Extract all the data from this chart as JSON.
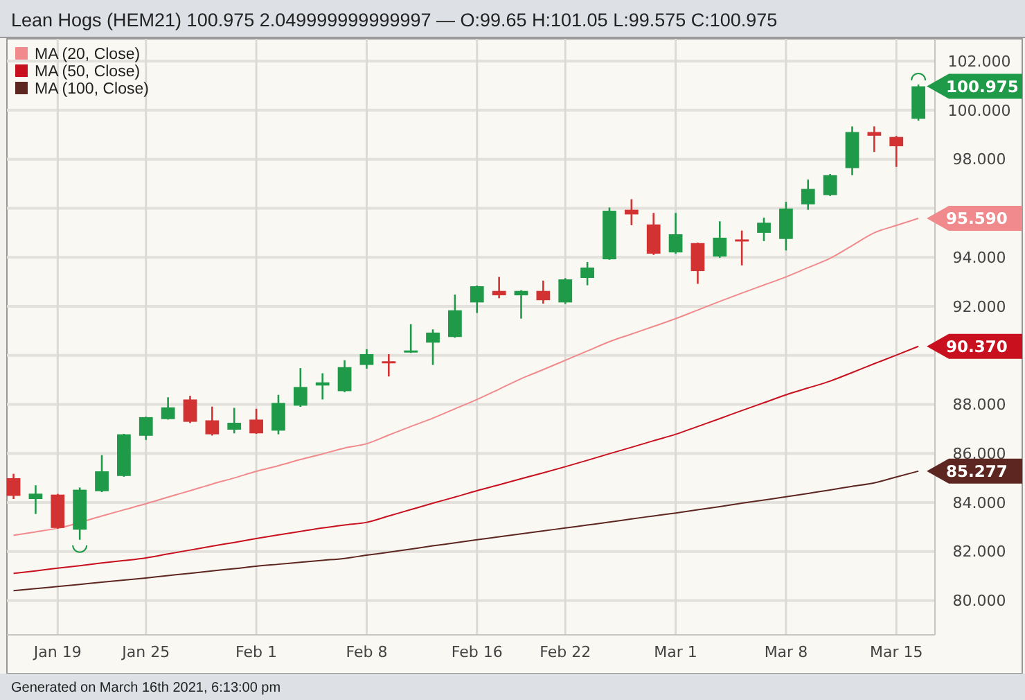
{
  "chart_data": {
    "type": "candlestick",
    "title": "Lean Hogs (HEM21) 100.975 2.049999999999997 — O:99.65 H:101.05 L:99.575 C:100.975",
    "annotations": [
      "Generated on March 16th 2021, 6:13:00 pm"
    ],
    "categories": [
      null,
      null,
      "Jan 19",
      null,
      null,
      null,
      "Jan 25",
      null,
      null,
      null,
      null,
      "Feb 1",
      null,
      null,
      null,
      null,
      "Feb 8",
      null,
      null,
      null,
      null,
      "Feb 16",
      null,
      null,
      null,
      "Feb 22",
      null,
      null,
      null,
      null,
      "Mar 1",
      null,
      null,
      null,
      null,
      "Mar 8",
      null,
      null,
      null,
      null,
      "Mar 15",
      null
    ],
    "ylim": [
      78.6,
      102.8
    ],
    "yticks": [
      {
        "value": 80,
        "label": "80.000"
      },
      {
        "value": 82,
        "label": "82.000"
      },
      {
        "value": 84,
        "label": "84.000"
      },
      {
        "value": 86,
        "label": "86.000"
      },
      {
        "value": 88,
        "label": "88.000"
      },
      {
        "value": 90,
        "label": null
      },
      {
        "value": 92,
        "label": "92.000"
      },
      {
        "value": 94,
        "label": "94.000"
      },
      {
        "value": 96,
        "label": null
      },
      {
        "value": 98,
        "label": "98.000"
      },
      {
        "value": 100,
        "label": "100.000"
      },
      {
        "value": 102,
        "label": "102.000"
      }
    ],
    "grid": true,
    "legend": "top left",
    "series": [
      {
        "type": "line",
        "name": "MA (20, Close)",
        "color": "#f08a8c",
        "values": [
          82.66,
          82.8,
          82.95,
          null,
          83.45,
          83.7,
          83.95,
          84.22,
          84.48,
          84.75,
          85.0,
          85.27,
          85.5,
          85.75,
          85.98,
          86.22,
          86.4,
          86.75,
          87.1,
          87.44,
          87.82,
          88.2,
          88.62,
          89.05,
          89.42,
          89.8,
          90.18,
          90.56,
          90.87,
          91.18,
          91.5,
          91.85,
          92.2,
          92.54,
          92.87,
          93.2,
          93.58,
          93.96,
          94.48,
          95.0,
          95.3,
          95.59
        ],
        "value_labels": [
          null,
          null,
          null,
          null,
          null,
          null,
          null,
          null,
          null,
          null,
          null,
          null,
          null,
          null,
          null,
          null,
          null,
          null,
          null,
          null,
          null,
          null,
          null,
          null,
          null,
          null,
          null,
          null,
          null,
          null,
          null,
          null,
          null,
          null,
          null,
          null,
          null,
          null,
          null,
          null,
          null,
          "95.590"
        ]
      },
      {
        "type": "line",
        "name": "MA (50, Close)",
        "color": "#c8101e",
        "values": [
          81.11,
          81.21,
          81.32,
          81.42,
          81.53,
          81.63,
          81.74,
          81.9,
          82.06,
          82.22,
          82.37,
          82.53,
          82.68,
          82.82,
          82.96,
          83.08,
          83.19,
          83.45,
          83.71,
          83.97,
          84.22,
          84.48,
          84.72,
          84.97,
          85.21,
          85.46,
          85.72,
          85.99,
          86.25,
          86.52,
          86.78,
          87.1,
          87.42,
          87.75,
          88.07,
          88.39,
          88.67,
          88.95,
          89.3,
          89.66,
          90.01,
          90.37
        ],
        "value_labels": [
          null,
          null,
          null,
          null,
          null,
          null,
          null,
          null,
          null,
          null,
          null,
          null,
          null,
          null,
          null,
          null,
          null,
          null,
          null,
          null,
          null,
          null,
          null,
          null,
          null,
          null,
          null,
          null,
          null,
          null,
          null,
          null,
          null,
          null,
          null,
          null,
          null,
          null,
          null,
          null,
          null,
          "90.370"
        ]
      },
      {
        "type": "line",
        "name": "MA (100, Close)",
        "color": "#5e2620",
        "values": [
          80.4,
          80.49,
          80.57,
          80.66,
          80.75,
          80.83,
          80.92,
          81.02,
          81.11,
          81.21,
          81.3,
          81.4,
          81.48,
          81.56,
          81.64,
          81.72,
          81.85,
          81.97,
          82.1,
          82.23,
          82.35,
          82.48,
          82.6,
          82.72,
          82.84,
          82.96,
          83.08,
          83.2,
          83.33,
          83.45,
          83.57,
          83.7,
          83.83,
          83.97,
          84.1,
          84.23,
          84.37,
          84.51,
          84.66,
          84.8,
          85.04,
          85.277
        ],
        "value_labels": [
          null,
          null,
          null,
          null,
          null,
          null,
          null,
          null,
          null,
          null,
          null,
          null,
          null,
          null,
          null,
          null,
          null,
          null,
          null,
          null,
          null,
          null,
          null,
          null,
          null,
          null,
          null,
          null,
          null,
          null,
          null,
          null,
          null,
          null,
          null,
          null,
          null,
          null,
          null,
          null,
          null,
          "85.277"
        ]
      },
      {
        "ohlc": [
          [
            84.99,
            85.17,
            84.14,
            84.27
          ],
          [
            84.14,
            84.7,
            83.53,
            84.36
          ],
          [
            84.32,
            84.35,
            82.93,
            82.96
          ],
          [
            82.89,
            84.61,
            82.48,
            84.52
          ],
          [
            84.46,
            85.93,
            84.42,
            85.27
          ],
          [
            85.08,
            86.8,
            85.05,
            86.78
          ],
          [
            86.72,
            87.5,
            86.55,
            87.48
          ],
          [
            87.4,
            88.29,
            87.38,
            87.88
          ],
          [
            88.2,
            88.35,
            87.24,
            87.29
          ],
          [
            87.35,
            87.91,
            86.73,
            86.78
          ],
          [
            86.97,
            87.86,
            86.82,
            87.25
          ],
          [
            87.38,
            87.82,
            86.8,
            86.82
          ],
          [
            86.93,
            88.39,
            86.78,
            88.06
          ],
          [
            87.95,
            89.48,
            87.9,
            88.71
          ],
          [
            88.77,
            89.27,
            88.2,
            88.9
          ],
          [
            88.54,
            89.8,
            88.5,
            89.52
          ],
          [
            89.61,
            90.25,
            89.46,
            90.05
          ],
          [
            89.76,
            90.05,
            89.14,
            89.72
          ],
          [
            90.16,
            91.27,
            90.1,
            90.2
          ],
          [
            90.52,
            91.06,
            89.61,
            90.93
          ],
          [
            90.75,
            92.48,
            90.72,
            91.84
          ],
          [
            92.16,
            92.85,
            91.73,
            92.82
          ],
          [
            92.63,
            93.2,
            92.33,
            92.45
          ],
          [
            92.45,
            92.66,
            91.5,
            92.63
          ],
          [
            92.63,
            93.05,
            92.11,
            92.25
          ],
          [
            92.16,
            93.15,
            92.1,
            93.1
          ],
          [
            93.16,
            93.81,
            92.86,
            93.58
          ],
          [
            93.92,
            96.03,
            93.9,
            95.9
          ],
          [
            95.94,
            96.37,
            95.31,
            95.75
          ],
          [
            95.34,
            95.81,
            94.1,
            94.15
          ],
          [
            94.2,
            95.81,
            94.15,
            94.94
          ],
          [
            94.58,
            94.6,
            92.92,
            93.44
          ],
          [
            94.03,
            95.47,
            93.98,
            94.8
          ],
          [
            94.73,
            95.09,
            93.67,
            94.71
          ],
          [
            95.0,
            95.62,
            94.66,
            95.41
          ],
          [
            94.75,
            96.26,
            94.28,
            95.99
          ],
          [
            96.16,
            97.17,
            95.94,
            96.79
          ],
          [
            96.54,
            97.4,
            96.5,
            97.35
          ],
          [
            97.64,
            99.34,
            97.35,
            99.11
          ],
          [
            99.11,
            99.34,
            98.3,
            98.96
          ],
          [
            98.91,
            98.95,
            97.69,
            98.53
          ],
          [
            99.65,
            101.05,
            99.575,
            100.975
          ]
        ],
        "colors": [
          "#d23232",
          "#1f9a48",
          "#d23232",
          "#1f9a48",
          "#1f9a48",
          "#1f9a48",
          "#1f9a48",
          "#1f9a48",
          "#d23232",
          "#d23232",
          "#1f9a48",
          "#d23232",
          "#1f9a48",
          "#1f9a48",
          "#1f9a48",
          "#1f9a48",
          "#1f9a48",
          "#d23232",
          "#1f9a48",
          "#1f9a48",
          "#1f9a48",
          "#1f9a48",
          "#d23232",
          "#1f9a48",
          "#d23232",
          "#1f9a48",
          "#1f9a48",
          "#1f9a48",
          "#d23232",
          "#d23232",
          "#1f9a48",
          "#d23232",
          "#1f9a48",
          "#d23232",
          "#1f9a48",
          "#1f9a48",
          "#1f9a48",
          "#1f9a48",
          "#1f9a48",
          "#d23232",
          "#d23232",
          "#1f9a48"
        ],
        "value_labels": [
          null,
          null,
          null,
          null,
          null,
          null,
          null,
          null,
          null,
          null,
          null,
          null,
          null,
          null,
          null,
          null,
          null,
          null,
          null,
          null,
          null,
          null,
          null,
          null,
          null,
          null,
          null,
          null,
          null,
          null,
          null,
          null,
          null,
          null,
          null,
          null,
          null,
          null,
          null,
          null,
          null,
          "100.975"
        ]
      }
    ]
  }
}
